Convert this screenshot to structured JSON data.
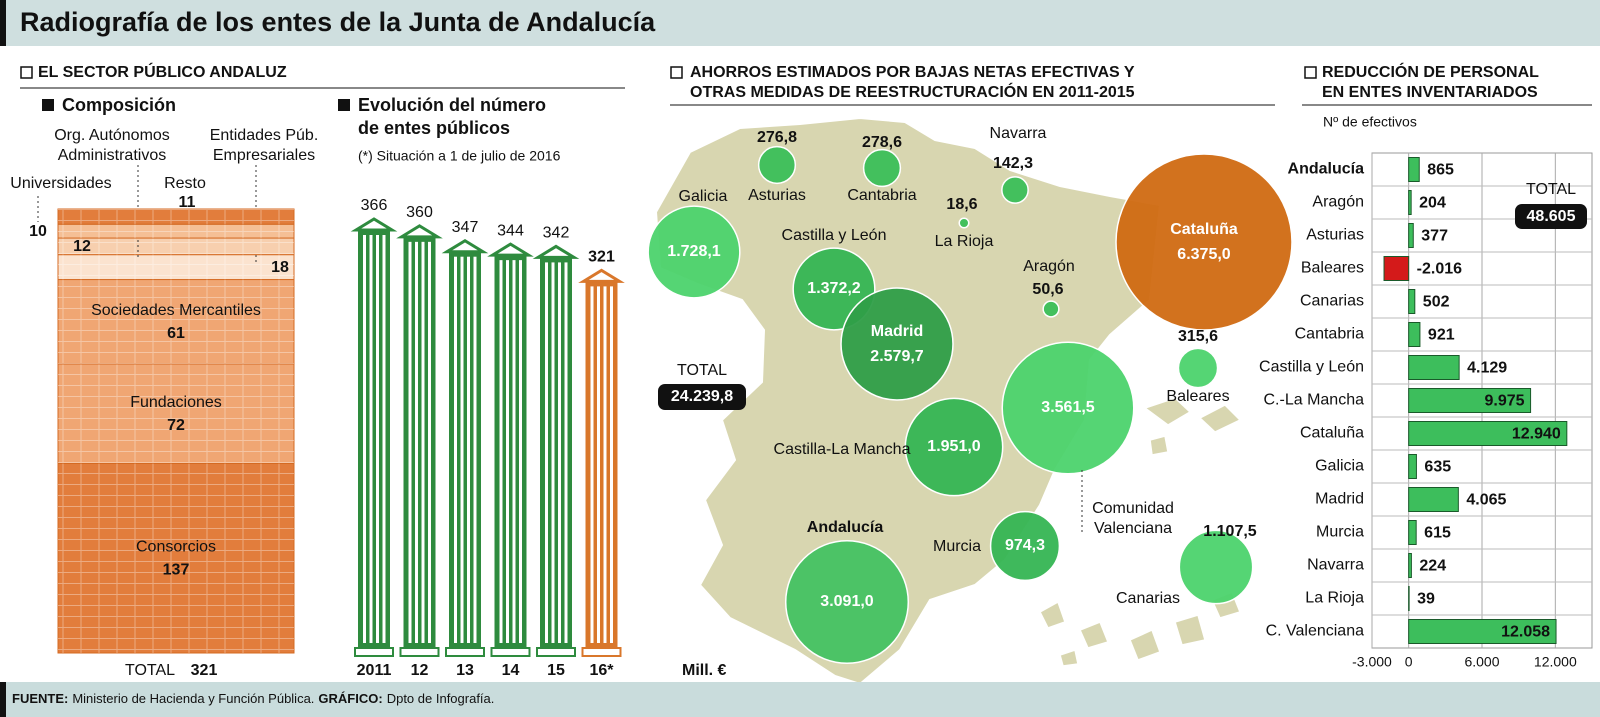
{
  "title": "Radiografía de los entes de la Junta de Andalucía",
  "section_heading": "EL SECTOR PÚBLICO ANDALUZ",
  "chart_data": [
    {
      "type": "stacked-block",
      "title": "Composición",
      "items": [
        {
          "label": "Consorcios",
          "value": 137,
          "color": "#e27d3c"
        },
        {
          "label": "Fundaciones",
          "value": 72,
          "color": "#f0a673"
        },
        {
          "label": "Sociedades Mercantiles",
          "value": 61,
          "color": "#f0a673"
        },
        {
          "label": [
            "Entidades Púb.",
            "Empresariales"
          ],
          "value": 18,
          "color": "#fbe3cf"
        },
        {
          "label": [
            "Org. Autónomos",
            "Administrativos"
          ],
          "value": 12,
          "color": "#f7cfae"
        },
        {
          "label": "Universidades",
          "value": 10,
          "color": "#f5bf95"
        },
        {
          "label": "Resto",
          "value": 11,
          "color": "#e27d3c"
        }
      ],
      "total_label": "TOTAL",
      "total": 321
    },
    {
      "type": "bar",
      "title": [
        "Evolución del número",
        "de entes públicos"
      ],
      "note": "(*) Situación a 1 de julio de 2016",
      "categories": [
        "2011",
        "12",
        "13",
        "14",
        "15",
        "16*"
      ],
      "values": [
        366,
        360,
        347,
        344,
        342,
        321
      ],
      "colors": [
        "#2e8b3e",
        "#2e8b3e",
        "#2e8b3e",
        "#2e8b3e",
        "#2e8b3e",
        "#d9772b"
      ]
    },
    {
      "type": "bubble-map",
      "title": [
        "AHORROS ESTIMADOS POR BAJAS NETAS EFECTIVAS Y",
        "OTRAS MEDIDAS DE REESTRUCTURACIÓN EN 2011-2015"
      ],
      "unit": "Mill. €",
      "total_label": "TOTAL",
      "total": {
        "value": 24239.8,
        "label": "24.239,8"
      },
      "regions": [
        {
          "name": "Galicia",
          "value": 1728.1,
          "value_label": "1.728,1",
          "color": "#4cd36d"
        },
        {
          "name": "Asturias",
          "value": 276.8,
          "value_label": "276,8",
          "color": "#3bbf59"
        },
        {
          "name": "Cantabria",
          "value": 278.6,
          "value_label": "278,6",
          "color": "#3bbf59"
        },
        {
          "name": "Navarra",
          "value": 142.3,
          "value_label": "142,3",
          "color": "#3bbf59"
        },
        {
          "name": "La Rioja",
          "value": 18.6,
          "value_label": "18,6",
          "color": "#3bbf59"
        },
        {
          "name": "Castilla y León",
          "value": 1372.2,
          "value_label": "1.372,2",
          "color": "#35b553"
        },
        {
          "name": "Aragón",
          "value": 50.6,
          "value_label": "50,6",
          "color": "#3bbf59"
        },
        {
          "name": "Cataluña",
          "value": 6375.0,
          "value_label": "6.375,0",
          "color": "#d06a12"
        },
        {
          "name": "Madrid",
          "value": 2579.7,
          "value_label": "2.579,7",
          "color": "#2f9e48"
        },
        {
          "name": "Baleares",
          "value": 315.6,
          "value_label": "315,6",
          "color": "#4cd36d"
        },
        {
          "name": [
            "Comunidad",
            "Valenciana"
          ],
          "value": 3561.5,
          "value_label": "3.561,5",
          "color": "#4cd36d"
        },
        {
          "name": "Castilla-La Mancha",
          "value": 1951.0,
          "value_label": "1.951,0",
          "color": "#35b553"
        },
        {
          "name": "Andalucía",
          "value": 3091.0,
          "value_label": "3.091,0",
          "color": "#45c262"
        },
        {
          "name": "Murcia",
          "value": 974.3,
          "value_label": "974,3",
          "color": "#35b553"
        },
        {
          "name": "Canarias",
          "value": 1107.5,
          "value_label": "1.107,5",
          "color": "#4cd36d"
        }
      ]
    },
    {
      "type": "hbar",
      "title": [
        "REDUCCIÓN DE PERSONAL",
        "EN ENTES INVENTARIADOS"
      ],
      "subtitle": "Nº de efectivos",
      "categories": [
        "Andalucía",
        "Aragón",
        "Asturias",
        "Baleares",
        "Canarias",
        "Cantabria",
        "Castilla y León",
        "C.-La Mancha",
        "Cataluña",
        "Galicia",
        "Madrid",
        "Murcia",
        "Navarra",
        "La Rioja",
        "C. Valenciana"
      ],
      "values": [
        865,
        204,
        377,
        -2016,
        502,
        921,
        4129,
        9975,
        12940,
        635,
        4065,
        615,
        224,
        39,
        12058
      ],
      "value_labels": [
        "865",
        "204",
        "377",
        "-2.016",
        "502",
        "921",
        "4.129",
        "9.975",
        "12.940",
        "635",
        "4.065",
        "615",
        "224",
        "39",
        "12.058"
      ],
      "color": "#3dbe5c",
      "negative_color": "#d41a1a",
      "xlim": [
        -3000,
        15000
      ],
      "xticks": [
        {
          "value": -3000,
          "label": "-3.000"
        },
        0,
        {
          "value": 6000,
          "label": "6.000"
        },
        {
          "value": 12000,
          "label": "12.000"
        }
      ],
      "grid": true,
      "total_label": "TOTAL",
      "total": {
        "value": 48605,
        "label": "48.605"
      }
    }
  ],
  "footer": {
    "source_label": "FUENTE:",
    "source": "Ministerio de Hacienda y Función Pública.",
    "graphic_label": "GRÁFICO:",
    "graphic": "Dpto de Infografía."
  }
}
